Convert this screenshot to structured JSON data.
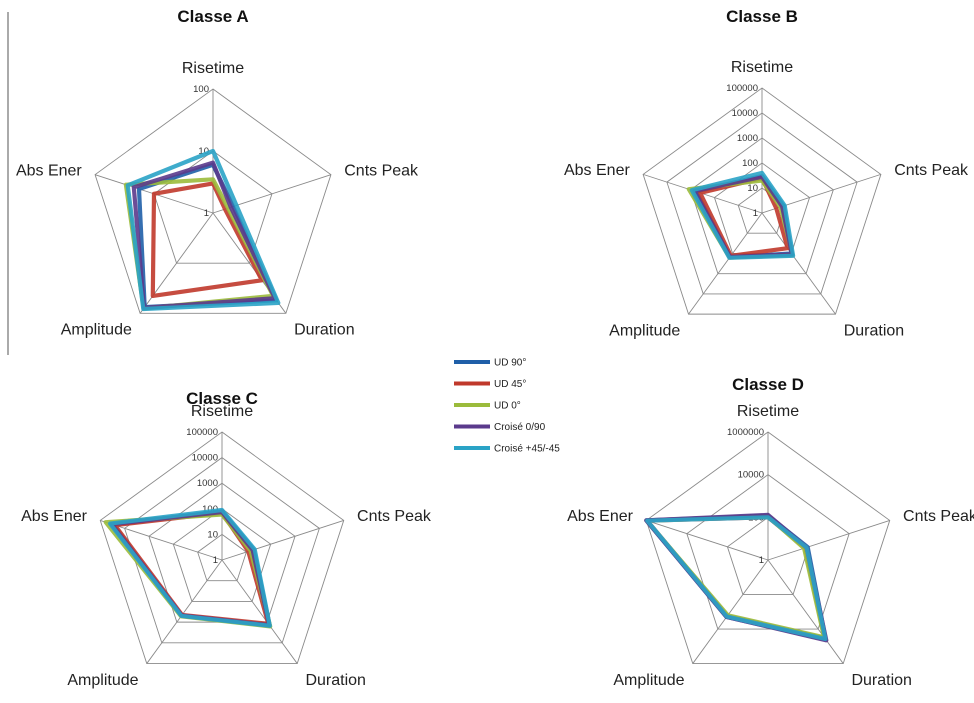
{
  "chart_data": [
    {
      "type": "radar",
      "title": "Classe A",
      "axes": [
        "Risetime",
        "Cnts Peak",
        "Duration",
        "Amplitude",
        "Abs Ener"
      ],
      "log_scale": true,
      "ticks": [
        "1",
        "10",
        "100"
      ],
      "tick_values": [
        1,
        10,
        100
      ],
      "rmin": 1,
      "rmax": 100,
      "series": [
        {
          "name": "UD 90°",
          "values": [
            6,
            2.2,
            55,
            75,
            18
          ]
        },
        {
          "name": "UD 45°",
          "values": [
            3,
            1.6,
            22,
            45,
            10
          ]
        },
        {
          "name": "UD 0°",
          "values": [
            3.5,
            1.8,
            45,
            80,
            30
          ]
        },
        {
          "name": "Croisé 0/90",
          "values": [
            6.5,
            2,
            50,
            78,
            22
          ]
        },
        {
          "name": "Croisé +45/-45",
          "values": [
            10,
            2.5,
            62,
            82,
            28
          ]
        }
      ]
    },
    {
      "type": "radar",
      "title": "Classe B",
      "axes": [
        "Risetime",
        "Cnts Peak",
        "Duration",
        "Amplitude",
        "Abs Ener"
      ],
      "log_scale": true,
      "ticks": [
        "1",
        "10",
        "100",
        "1000",
        "10000",
        "100000"
      ],
      "tick_values": [
        1,
        10,
        100,
        1000,
        10000,
        100000
      ],
      "rmin": 1,
      "rmax": 100000,
      "series": [
        {
          "name": "UD 90°",
          "values": [
            30,
            8,
            100,
            150,
            600
          ]
        },
        {
          "name": "UD 45°",
          "values": [
            25,
            4,
            55,
            130,
            400
          ]
        },
        {
          "name": "UD 0°",
          "values": [
            20,
            6,
            120,
            160,
            1200
          ]
        },
        {
          "name": "Croisé 0/90",
          "values": [
            28,
            7,
            110,
            150,
            700
          ]
        },
        {
          "name": "Croisé +45/-45",
          "values": [
            40,
            9,
            130,
            165,
            900
          ]
        }
      ]
    },
    {
      "type": "radar",
      "title": "Classe C",
      "axes": [
        "Risetime",
        "Cnts Peak",
        "Duration",
        "Amplitude",
        "Abs Ener"
      ],
      "log_scale": true,
      "ticks": [
        "1",
        "10",
        "100",
        "1000",
        "10000",
        "100000"
      ],
      "tick_values": [
        1,
        10,
        100,
        1000,
        10000,
        100000
      ],
      "rmin": 1,
      "rmax": 100000,
      "series": [
        {
          "name": "UD 90°",
          "values": [
            80,
            20,
            1500,
            500,
            30000
          ]
        },
        {
          "name": "UD 45°",
          "values": [
            70,
            12,
            1200,
            450,
            25000
          ]
        },
        {
          "name": "UD 0°",
          "values": [
            60,
            15,
            1600,
            520,
            60000
          ]
        },
        {
          "name": "Croisé 0/90",
          "values": [
            75,
            18,
            1400,
            480,
            35000
          ]
        },
        {
          "name": "Croisé +45/-45",
          "values": [
            90,
            22,
            1500,
            500,
            40000
          ]
        }
      ]
    },
    {
      "type": "radar",
      "title": "Classe D",
      "axes": [
        "Risetime",
        "Cnts Peak",
        "Duration",
        "Amplitude",
        "Abs Ener"
      ],
      "log_scale": true,
      "ticks": [
        "1",
        "100",
        "10000",
        "1000000"
      ],
      "tick_values": [
        1,
        100,
        10000,
        1000000
      ],
      "rmin": 1,
      "rmax": 1000000,
      "series": [
        {
          "name": "UD 90°",
          "values": [
            120,
            90,
            40000,
            2000,
            1000000
          ]
        },
        {
          "name": "UD 45°",
          "values": [
            100,
            70,
            35000,
            1800,
            900000
          ]
        },
        {
          "name": "UD 0°",
          "values": [
            110,
            60,
            30000,
            1600,
            950000
          ]
        },
        {
          "name": "Croisé 0/90",
          "values": [
            130,
            80,
            45000,
            2000,
            1000000
          ]
        },
        {
          "name": "Croisé +45/-45",
          "values": [
            100,
            80,
            38000,
            1900,
            900000
          ]
        }
      ]
    }
  ],
  "legend": {
    "placement": "center",
    "entries": [
      {
        "name": "UD 90°",
        "color": "#1f5fa8"
      },
      {
        "name": "UD 45°",
        "color": "#c0392b"
      },
      {
        "name": "UD 0°",
        "color": "#9bbb3b"
      },
      {
        "name": "Croisé 0/90",
        "color": "#5b3a8c"
      },
      {
        "name": "Croisé +45/-45",
        "color": "#2aa3c6"
      }
    ]
  }
}
